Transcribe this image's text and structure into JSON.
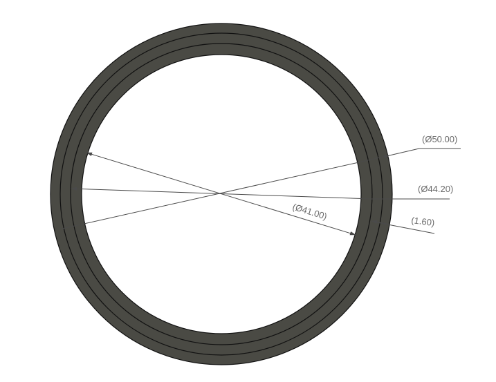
{
  "drawing": {
    "colors": {
      "background": "#ffffff",
      "ring_fill": "#4a4a44",
      "edge": "#111111",
      "dimension_line": "#4a4a4a",
      "dimension_text": "#6a6a6a"
    },
    "dimensions": {
      "outer_diameter": "(Ø50.00)",
      "middle_diameter": "(Ø44.20)",
      "inner_diameter": "(Ø41.00)",
      "thickness": "(1.60)"
    }
  }
}
